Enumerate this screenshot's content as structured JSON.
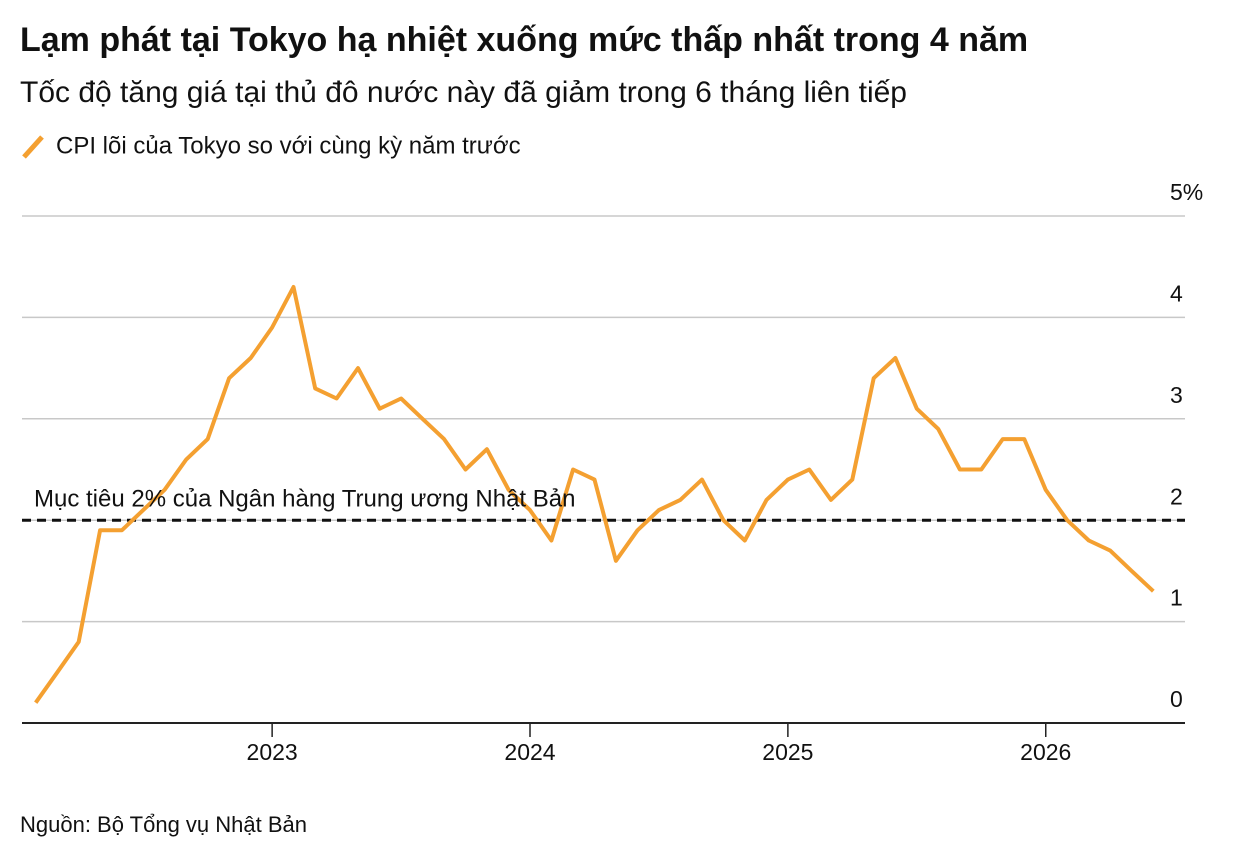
{
  "chart_data": {
    "type": "line",
    "title": "Lạm phát tại Tokyo hạ nhiệt xuống mức thấp nhất trong 4 năm",
    "subtitle": "Tốc độ tăng giá tại thủ đô nước này đã giảm trong 6 tháng liên tiếp",
    "source": "Nguồn: Bộ Tổng vụ Nhật Bản",
    "x": [
      2022.083,
      2022.167,
      2022.25,
      2022.333,
      2022.417,
      2022.5,
      2022.583,
      2022.667,
      2022.75,
      2022.833,
      2022.917,
      2023.0,
      2023.083,
      2023.167,
      2023.25,
      2023.333,
      2023.417,
      2023.5,
      2023.583,
      2023.667,
      2023.75,
      2023.833,
      2023.917,
      2024.0,
      2024.083,
      2024.167,
      2024.25,
      2024.333,
      2024.417,
      2024.5,
      2024.583,
      2024.667,
      2024.75,
      2024.833,
      2024.917,
      2025.0,
      2025.083,
      2025.167,
      2025.25,
      2025.333,
      2025.417,
      2025.5,
      2025.583,
      2025.667,
      2025.75,
      2025.833,
      2025.917,
      2026.0,
      2026.083,
      2026.167,
      2026.25,
      2026.333,
      2026.417
    ],
    "series": [
      {
        "name": "CPI lõi của Tokyo so với cùng kỳ năm trước",
        "color": "#f4a031",
        "values": [
          0.2,
          0.5,
          0.8,
          1.9,
          1.9,
          2.1,
          2.3,
          2.6,
          2.8,
          3.4,
          3.6,
          3.9,
          4.3,
          3.3,
          3.2,
          3.5,
          3.1,
          3.2,
          3.0,
          2.8,
          2.5,
          2.7,
          2.3,
          2.1,
          1.8,
          2.5,
          2.4,
          1.6,
          1.9,
          2.1,
          2.2,
          2.4,
          2.0,
          1.8,
          2.2,
          2.4,
          2.5,
          2.2,
          2.4,
          3.4,
          3.6,
          3.1,
          2.9,
          2.5,
          2.5,
          2.8,
          2.8,
          2.3,
          2.0,
          1.8,
          1.7,
          1.5,
          1.3
        ]
      }
    ],
    "reference_line": {
      "value": 2,
      "label": "Mục tiêu 2% của Ngân hàng Trung ương Nhật Bản"
    },
    "xlim": [
      2022.03,
      2026.54
    ],
    "xticks": [
      2023,
      2024,
      2025,
      2026
    ],
    "ylim": [
      0,
      5
    ],
    "yticks": [
      0,
      1,
      2,
      3,
      4,
      {
        "value": 5,
        "label": "5%"
      }
    ],
    "grid": true
  }
}
